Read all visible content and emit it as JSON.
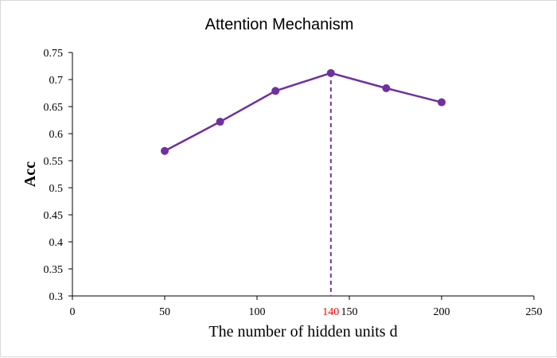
{
  "chart_data": {
    "type": "line",
    "title": "Attention Mechanism",
    "xlabel": "The number of hidden units d",
    "ylabel": "Acc",
    "xlim": [
      0,
      250
    ],
    "ylim": [
      0.3,
      0.75
    ],
    "x_ticks": [
      "0",
      "50",
      "100",
      "150",
      "200",
      "250"
    ],
    "y_ticks": [
      "0.3",
      "0.35",
      "0.4",
      "0.45",
      "0.5",
      "0.55",
      "0.6",
      "0.65",
      "0.7",
      "0.75"
    ],
    "highlight": {
      "x": 140,
      "label": "140",
      "color": "#ff0000"
    },
    "series": [
      {
        "x": [
          50,
          80,
          110,
          140,
          170,
          200
        ],
        "values": [
          0.568,
          0.622,
          0.679,
          0.712,
          0.684,
          0.658
        ],
        "color": "#7030a0"
      }
    ],
    "grid": false,
    "legend": "none"
  }
}
